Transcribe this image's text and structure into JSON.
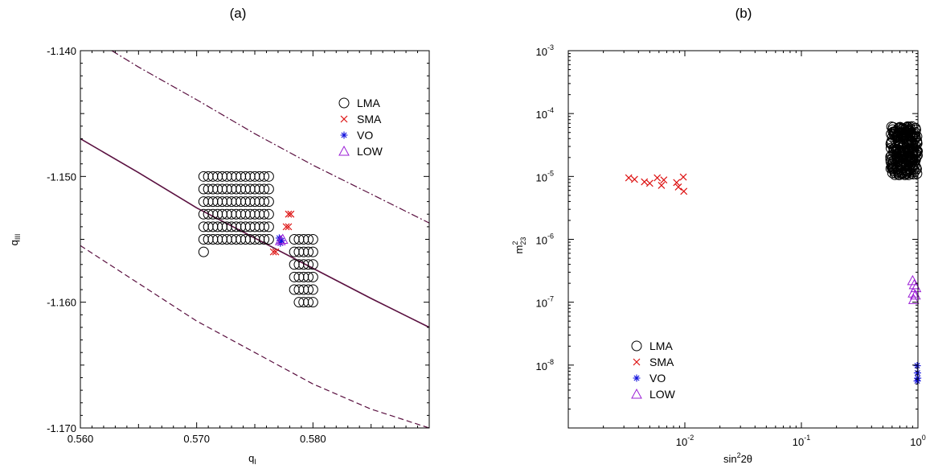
{
  "colors": {
    "lma": "#000000",
    "sma": "#dd1111",
    "vo": "#1111dd",
    "low": "#9b1fd6",
    "curves": "#5a1040"
  },
  "chart_data": [
    {
      "type": "scatter",
      "title": "(a)",
      "xlabel": "q",
      "xlabel_sub": "I",
      "ylabel": "q",
      "ylabel_sub": "III",
      "xlim": [
        0.56,
        0.59
      ],
      "ylim": [
        -1.17,
        -1.14
      ],
      "xticks": [
        0.56,
        0.57,
        0.58
      ],
      "xtick_labels": [
        "0.560",
        "0.570",
        "0.580"
      ],
      "yticks": [
        -1.17,
        -1.16,
        -1.15,
        -1.14
      ],
      "ytick_labels": [
        "-1.170",
        "-1.160",
        "-1.150",
        "-1.140"
      ],
      "legend_position": "top-right",
      "series": [
        {
          "name": "LMA",
          "marker": "circle",
          "color_key": "lma",
          "blocks": [
            {
              "x_start": 0.5706,
              "x_end": 0.5764,
              "x_step": 0.0004,
              "y_values": [
                -1.15,
                -1.151,
                -1.152,
                -1.153,
                -1.154,
                -1.155
              ]
            },
            {
              "x_start": 0.5784,
              "x_end": 0.58,
              "x_step": 0.0004,
              "y_values": [
                -1.155,
                -1.156,
                -1.157,
                -1.158,
                -1.159
              ]
            },
            {
              "x_start": 0.5788,
              "x_end": 0.58,
              "x_step": 0.0004,
              "y_values": [
                -1.16
              ]
            }
          ],
          "extra_points": [
            [
              0.5706,
              -1.156
            ]
          ]
        },
        {
          "name": "SMA",
          "marker": "x",
          "color_key": "sma",
          "points": [
            [
              0.5779,
              -1.153
            ],
            [
              0.5781,
              -1.153
            ],
            [
              0.5777,
              -1.154
            ],
            [
              0.5779,
              -1.154
            ],
            [
              0.5766,
              -1.156
            ],
            [
              0.5768,
              -1.156
            ]
          ]
        },
        {
          "name": "VO",
          "marker": "asterisk",
          "color_key": "vo",
          "points": [
            [
              0.5771,
              -1.1549
            ],
            [
              0.5773,
              -1.1551
            ],
            [
              0.5772,
              -1.1553
            ]
          ]
        },
        {
          "name": "LOW",
          "marker": "triangle",
          "color_key": "low",
          "points": [
            [
              0.5774,
              -1.155
            ],
            [
              0.5772,
              -1.1551
            ]
          ]
        }
      ],
      "curves": [
        {
          "style": "solid",
          "points": [
            [
              0.56,
              -1.147
            ],
            [
              0.565,
              -1.1497
            ],
            [
              0.57,
              -1.1525
            ],
            [
              0.575,
              -1.1549
            ],
            [
              0.58,
              -1.1573
            ],
            [
              0.585,
              -1.1597
            ],
            [
              0.59,
              -1.162
            ]
          ]
        },
        {
          "style": "dashed",
          "points": [
            [
              0.56,
              -1.1555
            ],
            [
              0.565,
              -1.1585
            ],
            [
              0.57,
              -1.1615
            ],
            [
              0.575,
              -1.164
            ],
            [
              0.58,
              -1.1665
            ],
            [
              0.585,
              -1.1685
            ],
            [
              0.59,
              -1.17
            ]
          ]
        },
        {
          "style": "dashdot",
          "points": [
            [
              0.5627,
              -1.14
            ],
            [
              0.565,
              -1.1413
            ],
            [
              0.57,
              -1.1439
            ],
            [
              0.575,
              -1.1466
            ],
            [
              0.58,
              -1.1491
            ],
            [
              0.585,
              -1.1514
            ],
            [
              0.59,
              -1.1537
            ]
          ]
        }
      ]
    },
    {
      "type": "scatter",
      "title": "(b)",
      "xlabel": "sin",
      "xlabel_sup": "2",
      "xlabel_rest": "2θ",
      "ylabel": "m",
      "ylabel_sup": "2",
      "ylabel_sub": "23",
      "xscale": "log",
      "yscale": "log",
      "xlim": [
        0.001,
        1
      ],
      "ylim": [
        1e-09,
        0.001
      ],
      "xticks": [
        0.01,
        0.1,
        1
      ],
      "xtick_bases": [
        "10",
        "10",
        "10"
      ],
      "xtick_exps": [
        "-2",
        "-1",
        "0"
      ],
      "yticks": [
        1e-08,
        1e-07,
        1e-06,
        1e-05,
        0.0001,
        0.001
      ],
      "ytick_bases": [
        "10",
        "10",
        "10",
        "10",
        "10",
        "10"
      ],
      "ytick_exps": [
        "-8",
        "-7",
        "-6",
        "-5",
        "-4",
        "-3"
      ],
      "legend_position": "bottom-left",
      "series": [
        {
          "name": "LMA",
          "marker": "circle",
          "color_key": "lma",
          "cloud": {
            "x_min": 0.58,
            "x_max": 0.995,
            "y_min": 1.05e-05,
            "y_max": 6.25e-05,
            "count": 260
          }
        },
        {
          "name": "SMA",
          "marker": "x",
          "color_key": "sma",
          "points": [
            [
              0.0033,
              9.5e-06
            ],
            [
              0.0037,
              9e-06
            ],
            [
              0.0045,
              8.2e-06
            ],
            [
              0.005,
              7.8e-06
            ],
            [
              0.0058,
              9.5e-06
            ],
            [
              0.0063,
              7.2e-06
            ],
            [
              0.0066,
              8.8e-06
            ],
            [
              0.0085,
              8e-06
            ],
            [
              0.0088,
              6.8e-06
            ],
            [
              0.0097,
              9.8e-06
            ],
            [
              0.0098,
              5.8e-06
            ]
          ]
        },
        {
          "name": "VO",
          "marker": "asterisk",
          "color_key": "vo",
          "points": [
            [
              0.985,
              9.8e-09
            ],
            [
              0.99,
              7.5e-09
            ],
            [
              0.985,
              5.6e-09
            ],
            [
              0.995,
              6.2e-09
            ]
          ]
        },
        {
          "name": "LOW",
          "marker": "triangle",
          "color_key": "low",
          "points": [
            [
              0.9,
              2.2e-07
            ],
            [
              0.93,
              1.9e-07
            ],
            [
              0.96,
              1.7e-07
            ],
            [
              0.91,
              1.4e-07
            ],
            [
              0.95,
              1.3e-07
            ],
            [
              0.92,
              1.1e-07
            ]
          ]
        }
      ]
    }
  ]
}
